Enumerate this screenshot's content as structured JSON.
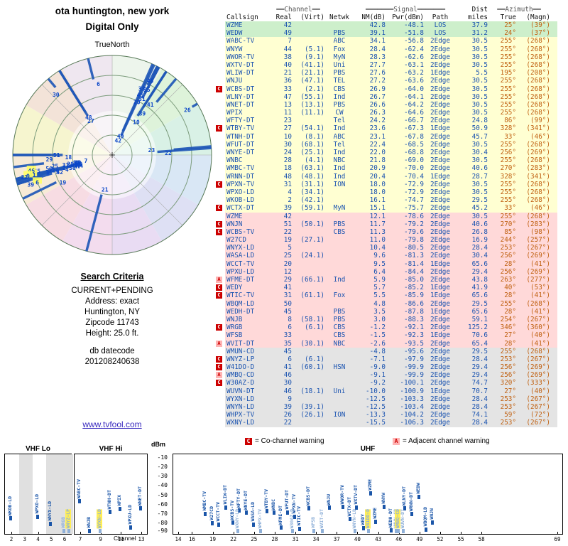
{
  "header": {
    "title_line1": "ota huntington, new york",
    "title_line2": "Digital Only",
    "true_north": "TrueNorth"
  },
  "search": {
    "heading": "Search Criteria",
    "lines": [
      "CURRENT+PENDING",
      "Address: exact",
      "Huntington, NY",
      "Zipcode 11743",
      "Height: 25.0 ft."
    ]
  },
  "datecode": {
    "label": "db datecode",
    "value": "201208240638"
  },
  "link": {
    "text": "www.tvfool.com"
  },
  "legend": {
    "c_symbol": "C",
    "c_text": "= Co-channel warning",
    "a_symbol": "A",
    "a_text": "= Adjacent channel warning"
  },
  "table": {
    "group_headers": {
      "channel": "══Channel══",
      "signal": "═══════Signal═══════",
      "dist": "Dist",
      "azimuth": "══Azimuth══"
    },
    "columns": [
      "Callsign",
      "Real",
      "(Virt)",
      "Netwk",
      "NM(dB)",
      "Pwr(dBm)",
      "Path",
      "miles",
      "True",
      "(Magn)"
    ],
    "row_fields": [
      "marker",
      "callsign",
      "real",
      "virt",
      "netwk",
      "nm_db",
      "pwr_dbm",
      "path",
      "dist_miles",
      "azimuth_true",
      "azimuth_magn",
      "row_color"
    ],
    "rows": [
      [
        "",
        "WZME",
        "42",
        "",
        "",
        "42.8",
        "-48.1",
        "LOS",
        "37.9",
        "25°",
        "(39°)",
        "green"
      ],
      [
        "",
        "WEDW",
        "49",
        "",
        "PBS",
        "39.1",
        "-51.8",
        "LOS",
        "31.2",
        "24°",
        "(37°)",
        "green"
      ],
      [
        "",
        "WABC-TV",
        "7",
        "",
        "ABC",
        "34.1",
        "-56.8",
        "2Edge",
        "30.5",
        "255°",
        "(268°)",
        "yellow"
      ],
      [
        "",
        "WNYW",
        "44",
        "(5.1)",
        "Fox",
        "28.4",
        "-62.4",
        "2Edge",
        "30.5",
        "255°",
        "(268°)",
        "yellow"
      ],
      [
        "",
        "WWOR-TV",
        "38",
        "(9.1)",
        "MyN",
        "28.3",
        "-62.6",
        "2Edge",
        "30.5",
        "255°",
        "(268°)",
        "yellow"
      ],
      [
        "",
        "WXTV-DT",
        "40",
        "(41.1)",
        "Uni",
        "27.7",
        "-63.1",
        "2Edge",
        "30.5",
        "255°",
        "(268°)",
        "yellow"
      ],
      [
        "",
        "WLIW-DT",
        "21",
        "(21.1)",
        "PBS",
        "27.6",
        "-63.2",
        "1Edge",
        "5.5",
        "195°",
        "(208°)",
        "yellow"
      ],
      [
        "",
        "WNJU",
        "36",
        "(47.1)",
        "TEL",
        "27.2",
        "-63.6",
        "2Edge",
        "30.5",
        "255°",
        "(268°)",
        "yellow"
      ],
      [
        "C",
        "WCBS-DT",
        "33",
        "(2.1)",
        "CBS",
        "26.9",
        "-64.0",
        "2Edge",
        "30.5",
        "255°",
        "(268°)",
        "yellow"
      ],
      [
        "",
        "WLNY-DT",
        "47",
        "(55.1)",
        "Ind",
        "26.7",
        "-64.1",
        "2Edge",
        "30.5",
        "255°",
        "(268°)",
        "yellow"
      ],
      [
        "",
        "WNET-DT",
        "13",
        "(13.1)",
        "PBS",
        "26.6",
        "-64.2",
        "2Edge",
        "30.5",
        "255°",
        "(268°)",
        "yellow"
      ],
      [
        "",
        "WPIX",
        "11",
        "(11.1)",
        "CW",
        "26.3",
        "-64.6",
        "2Edge",
        "30.5",
        "255°",
        "(268°)",
        "yellow"
      ],
      [
        "",
        "WFTY-DT",
        "23",
        "",
        "Tel",
        "24.2",
        "-66.7",
        "2Edge",
        "24.8",
        "86°",
        "(99°)",
        "yellow"
      ],
      [
        "C",
        "WTBY-TV",
        "27",
        "(54.1)",
        "Ind",
        "23.6",
        "-67.3",
        "1Edge",
        "50.9",
        "328°",
        "(341°)",
        "yellow"
      ],
      [
        "",
        "WTNH-DT",
        "10",
        "(8.1)",
        "ABC",
        "23.1",
        "-67.8",
        "2Edge",
        "45.7",
        "33°",
        "(46°)",
        "yellow"
      ],
      [
        "",
        "WFUT-DT",
        "30",
        "(68.1)",
        "Tel",
        "22.4",
        "-68.5",
        "2Edge",
        "30.5",
        "255°",
        "(268°)",
        "yellow"
      ],
      [
        "",
        "WNYE-DT",
        "24",
        "(25.1)",
        "Ind",
        "22.0",
        "-68.8",
        "2Edge",
        "30.4",
        "256°",
        "(269°)",
        "yellow"
      ],
      [
        "",
        "WNBC",
        "28",
        "(4.1)",
        "NBC",
        "21.8",
        "-69.0",
        "2Edge",
        "30.5",
        "255°",
        "(268°)",
        "yellow"
      ],
      [
        "",
        "WMBC-TV",
        "18",
        "(63.1)",
        "Ind",
        "20.9",
        "-70.0",
        "2Edge",
        "40.6",
        "270°",
        "(283°)",
        "yellow"
      ],
      [
        "",
        "WRNN-DT",
        "48",
        "(48.1)",
        "Ind",
        "20.4",
        "-70.4",
        "1Edge",
        "28.7",
        "328°",
        "(341°)",
        "yellow"
      ],
      [
        "C",
        "WPXN-TV",
        "31",
        "(31.1)",
        "ION",
        "18.0",
        "-72.9",
        "2Edge",
        "30.5",
        "255°",
        "(268°)",
        "yellow"
      ],
      [
        "",
        "WPXO-LD",
        "4",
        "(34.1)",
        "",
        "18.0",
        "-72.9",
        "2Edge",
        "30.5",
        "255°",
        "(268°)",
        "yellow"
      ],
      [
        "",
        "WKOB-LD",
        "2",
        "(42.1)",
        "",
        "16.1",
        "-74.7",
        "2Edge",
        "29.5",
        "255°",
        "(268°)",
        "yellow"
      ],
      [
        "C",
        "WCTX-DT",
        "39",
        "(59.1)",
        "MyN",
        "15.1",
        "-75.7",
        "2Edge",
        "45.2",
        "33°",
        "(46°)",
        "yellow"
      ],
      [
        "",
        "WZME",
        "42",
        "",
        "",
        "12.1",
        "-78.6",
        "2Edge",
        "30.5",
        "255°",
        "(268°)",
        "pink"
      ],
      [
        "C",
        "WNJN",
        "51",
        "(50.1)",
        "PBS",
        "11.7",
        "-79.2",
        "2Edge",
        "40.6",
        "270°",
        "(283°)",
        "pink"
      ],
      [
        "C",
        "WCBS-TV",
        "22",
        "",
        "CBS",
        "11.3",
        "-79.6",
        "2Edge",
        "26.8",
        "85°",
        "(98°)",
        "pink"
      ],
      [
        "",
        "W27CD",
        "19",
        "(27.1)",
        "",
        "11.0",
        "-79.8",
        "2Edge",
        "16.9",
        "244°",
        "(257°)",
        "pink"
      ],
      [
        "",
        "WNYX-LD",
        "5",
        "",
        "",
        "10.4",
        "-80.5",
        "2Edge",
        "28.4",
        "253°",
        "(267°)",
        "pink"
      ],
      [
        "",
        "WASA-LD",
        "25",
        "(24.1)",
        "",
        "9.6",
        "-81.3",
        "2Edge",
        "30.4",
        "256°",
        "(269°)",
        "pink"
      ],
      [
        "",
        "WCCT-TV",
        "20",
        "",
        "",
        "9.5",
        "-81.4",
        "1Edge",
        "65.6",
        "28°",
        "(41°)",
        "pink"
      ],
      [
        "",
        "WPXU-LD",
        "12",
        "",
        "",
        "6.4",
        "-84.4",
        "2Edge",
        "29.4",
        "256°",
        "(269°)",
        "pink"
      ],
      [
        "A",
        "WFME-DT",
        "29",
        "(66.1)",
        "Ind",
        "5.9",
        "-85.0",
        "2Edge",
        "43.8",
        "263°",
        "(277°)",
        "pink"
      ],
      [
        "C",
        "WEDY",
        "41",
        "",
        "",
        "5.7",
        "-85.2",
        "1Edge",
        "41.9",
        "40°",
        "(53°)",
        "pink"
      ],
      [
        "C",
        "WTIC-TV",
        "31",
        "(61.1)",
        "Fox",
        "5.5",
        "-85.9",
        "1Edge",
        "65.6",
        "28°",
        "(41°)",
        "pink"
      ],
      [
        "",
        "WBQM-LD",
        "50",
        "",
        "",
        "4.8",
        "-86.6",
        "2Edge",
        "29.5",
        "255°",
        "(268°)",
        "pink"
      ],
      [
        "",
        "WEDH-DT",
        "45",
        "",
        "PBS",
        "3.5",
        "-87.8",
        "1Edge",
        "65.6",
        "28°",
        "(41°)",
        "pink"
      ],
      [
        "",
        "WNJB",
        "8",
        "(58.1)",
        "PBS",
        "3.0",
        "-88.3",
        "2Edge",
        "59.1",
        "254°",
        "(267°)",
        "pink"
      ],
      [
        "C",
        "WRGB",
        "6",
        "(6.1)",
        "CBS",
        "-1.2",
        "-92.1",
        "2Edge",
        "125.2",
        "346°",
        "(360°)",
        "pink"
      ],
      [
        "",
        "WFSB",
        "33",
        "",
        "CBS",
        "-1.5",
        "-92.3",
        "1Edge",
        "70.6",
        "27°",
        "(40°)",
        "pink"
      ],
      [
        "A",
        "WVIT-DT",
        "35",
        "(30.1)",
        "NBC",
        "-2.6",
        "-93.5",
        "2Edge",
        "65.4",
        "28°",
        "(41°)",
        "pink"
      ],
      [
        "",
        "WMUN-CD",
        "45",
        "",
        "",
        "-4.8",
        "-95.6",
        "2Edge",
        "29.5",
        "255°",
        "(268°)",
        "gray"
      ],
      [
        "C",
        "WNYZ-LP",
        "6",
        "(6.1)",
        "",
        "-7.1",
        "-97.9",
        "2Edge",
        "28.4",
        "253°",
        "(267°)",
        "gray"
      ],
      [
        "C",
        "W41DO-D",
        "41",
        "(60.1)",
        "HSN",
        "-9.0",
        "-99.9",
        "2Edge",
        "29.4",
        "256°",
        "(269°)",
        "gray"
      ],
      [
        "A",
        "WMBQ-CD",
        "46",
        "",
        "",
        "-9.1",
        "-99.9",
        "2Edge",
        "29.4",
        "256°",
        "(269°)",
        "gray"
      ],
      [
        "C",
        "W30AZ-D",
        "30",
        "",
        "",
        "-9.2",
        "-100.1",
        "2Edge",
        "74.7",
        "320°",
        "(333°)",
        "gray"
      ],
      [
        "",
        "WUVN-DT",
        "46",
        "(18.1)",
        "Uni",
        "-10.0",
        "-100.9",
        "1Edge",
        "70.7",
        "27°",
        "(40°)",
        "gray"
      ],
      [
        "",
        "WYXN-LD",
        "9",
        "",
        "",
        "-12.5",
        "-103.3",
        "2Edge",
        "28.4",
        "253°",
        "(267°)",
        "gray"
      ],
      [
        "",
        "WNYN-LD",
        "39",
        "(39.1)",
        "",
        "-12.5",
        "-103.4",
        "2Edge",
        "28.4",
        "253°",
        "(267°)",
        "gray"
      ],
      [
        "",
        "WHPX-TV",
        "26",
        "(26.1)",
        "ION",
        "-13.3",
        "-104.2",
        "2Edge",
        "74.1",
        "59°",
        "(72°)",
        "gray"
      ],
      [
        "",
        "WXNY-LD",
        "22",
        "",
        "",
        "-15.5",
        "-106.3",
        "2Edge",
        "28.4",
        "253°",
        "(267°)",
        "gray"
      ]
    ],
    "row_colors": {
      "green": "#cdefcb",
      "yellow": "#ffffd2",
      "pink": "#ffd9d9",
      "gray": "#e4e4e4"
    }
  },
  "radar": {
    "sector_colors": [
      "#edf5ec",
      "#def3da",
      "#d9f1e6",
      "#d9e7f5",
      "#dee0f4",
      "#e9dcf3",
      "#f3dcee",
      "#f7dce3",
      "#f7ead6",
      "#f6f5cf",
      "#f3e3d8",
      "#efe7f0"
    ],
    "bar_color": "#2058b8",
    "label_color": "#0a46c8"
  },
  "bottom": {
    "dbm_label": "dBm",
    "channel_label": "Channel",
    "y_ticks": [
      -10,
      -20,
      -30,
      -40,
      -50,
      -60,
      -70,
      -80,
      -90
    ],
    "panels": [
      {
        "label": "VHF Lo",
        "ticks": [
          2,
          3,
          4,
          5,
          6
        ]
      },
      {
        "label": "VHF Hi",
        "ticks": [
          7,
          9,
          11,
          13
        ]
      },
      {
        "label": "UHF",
        "ticks": [
          14,
          16,
          19,
          22,
          25,
          28,
          31,
          34,
          37,
          40,
          43,
          46,
          49,
          52,
          55,
          58,
          69
        ]
      }
    ],
    "yellow_stations": [
      "WNYZ-LP",
      "WYXN-LD",
      "W41DO-D",
      "WMBQ-CD"
    ],
    "gray_bands": [
      [
        2.6,
        3.6
      ],
      [
        4.6,
        6.3
      ]
    ]
  }
}
